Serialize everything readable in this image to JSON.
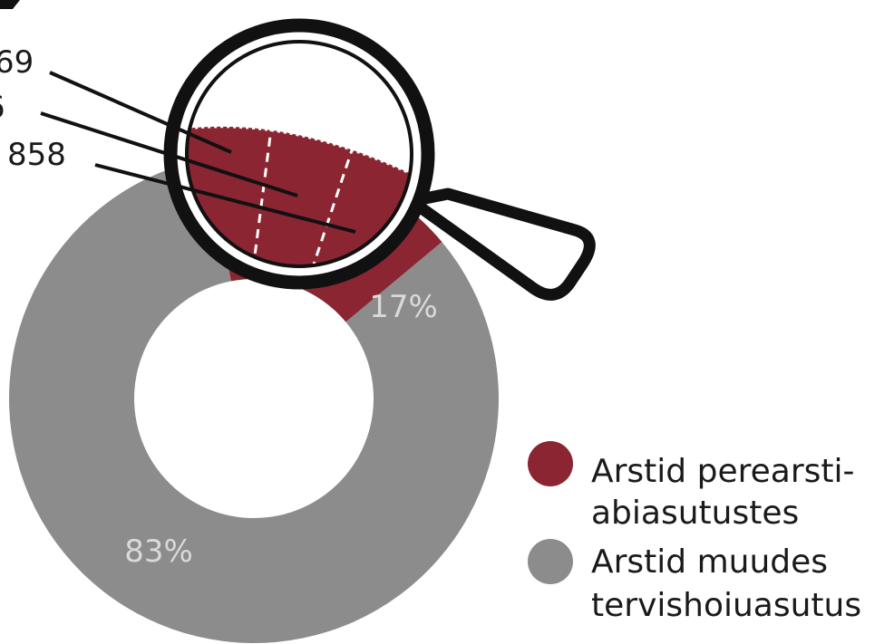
{
  "chart_data": {
    "type": "pie",
    "donut": true,
    "categories": [
      "Arstid perearstiabiasutustes",
      "Arstid muudes tervishoiuasutus"
    ],
    "values": [
      17,
      83
    ],
    "percent_labels": [
      "17%",
      "83%"
    ],
    "colors": [
      "#8b2532",
      "#8c8c8c"
    ],
    "legend": {
      "placement": "bottom-right",
      "entries": [
        {
          "lines": [
            "Arstid perearsti-",
            "abiasutustes"
          ],
          "color": "#8b2532"
        },
        {
          "lines": [
            "Arstid muudes",
            "tervishoiuasutus"
          ],
          "color": "#8c8c8c"
        }
      ]
    },
    "callouts": [
      "69",
      "6",
      "858"
    ],
    "magnifier": true
  }
}
